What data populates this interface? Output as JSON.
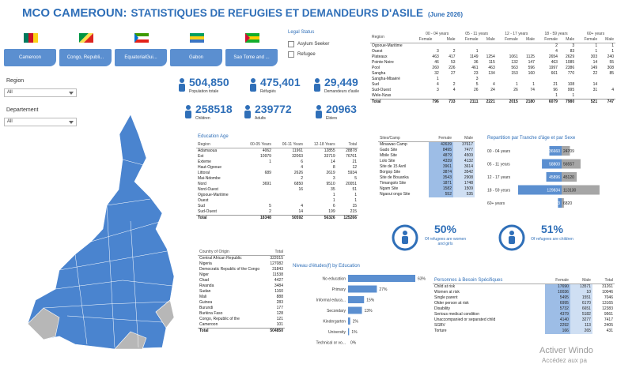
{
  "header": {
    "title": "MCO CAMEROUN:",
    "subtitle": "STATISTIQUES DE REFUGIES ET DEMANDEURS D'ASILE",
    "date": "(June 2026)"
  },
  "countries": [
    "Cameroon",
    "Congo, Republi...",
    "EquatorialGui...",
    "Gabon",
    "Sao Tome and ..."
  ],
  "legal_status": {
    "title": "Legal Status",
    "options": [
      "Asylum Seeker",
      "Refugee"
    ]
  },
  "filters": [
    {
      "label": "Region",
      "value": "All"
    },
    {
      "label": "Departement",
      "value": "All"
    }
  ],
  "kpis": [
    {
      "value": "504,850",
      "label": "Population totale"
    },
    {
      "value": "475,401",
      "label": "Réfugiés"
    },
    {
      "value": "29,449",
      "label": "Demandeurs d'asile"
    },
    {
      "value": "258518",
      "label": "Children"
    },
    {
      "value": "239772",
      "label": "Adults"
    },
    {
      "value": "20963",
      "label": "Elders"
    }
  ],
  "age_sex_table": {
    "region_header": "Region",
    "groups": [
      "00 - 04 years",
      "05 - 11 years",
      "12 - 17 years",
      "18 - 59 years",
      "60+ years"
    ],
    "sub_headers": [
      "Female",
      "Male"
    ],
    "rows": [
      [
        "Ogooue-Maritime",
        null,
        null,
        null,
        null,
        null,
        null,
        "2",
        "3",
        "1",
        "1"
      ],
      [
        "Ouest",
        "3",
        "2",
        "1",
        null,
        null,
        null,
        "4",
        "83",
        "1",
        "1"
      ],
      [
        "Plateaux",
        "463",
        "417",
        "1149",
        "1254",
        "1061",
        "1125",
        "2654",
        "2629",
        "303",
        "240"
      ],
      [
        "Pointe-Noire",
        "46",
        "53",
        "36",
        "115",
        "132",
        "147",
        "463",
        "1085",
        "14",
        "55"
      ],
      [
        "Pool",
        "260",
        "226",
        "461",
        "463",
        "563",
        "596",
        "1997",
        "2386",
        "149",
        "308"
      ],
      [
        "Sangha",
        "32",
        "27",
        "23",
        "134",
        "153",
        "160",
        "661",
        "770",
        "22",
        "85"
      ],
      [
        "Sangha-Mbaéré",
        "1",
        null,
        "3",
        null,
        null,
        null,
        null,
        null,
        null,
        null
      ],
      [
        "Sud",
        "4",
        "2",
        "5",
        "4",
        "1",
        "1",
        "21",
        "108",
        "14",
        null
      ],
      [
        "Sud-Ouest",
        "3",
        "4",
        "26",
        "24",
        "26",
        "74",
        "96",
        "995",
        "31",
        "4"
      ],
      [
        "Wele-Nzas",
        null,
        null,
        null,
        null,
        null,
        null,
        "1",
        "1",
        null,
        null
      ],
      [
        "Total",
        "796",
        "733",
        "2111",
        "2221",
        "2015",
        "2180",
        "6079",
        "7980",
        "521",
        "747"
      ]
    ]
  },
  "education_age_table": {
    "title": "Education Age",
    "header": [
      "Region",
      "00-05 Years",
      "06-11 Years",
      "12-18 Years",
      "Total"
    ],
    "rows": [
      [
        "Adamaoua",
        "4062",
        "11961",
        "12855",
        "28878"
      ],
      [
        "Est",
        "10979",
        "32063",
        "33719",
        "76761"
      ],
      [
        "Exteme",
        "1",
        "6",
        "14",
        "21"
      ],
      [
        "Haut-Ogooue",
        null,
        "4",
        "8",
        "12"
      ],
      [
        "Littoral",
        "689",
        "2626",
        "2619",
        "5934"
      ],
      [
        "Mai-Ndombe",
        null,
        "2",
        "3",
        "5"
      ],
      [
        "Nord",
        "3691",
        "6850",
        "9510",
        "20051"
      ],
      [
        "Nord-Ouest",
        null,
        "16",
        "35",
        "51"
      ],
      [
        "Ogooue-Maritime",
        null,
        null,
        "1",
        "1"
      ],
      [
        "Ouest",
        null,
        null,
        "1",
        "1"
      ],
      [
        "Sud",
        "5",
        "4",
        "6",
        "15"
      ],
      [
        "Sud-Ouest",
        "2",
        "14",
        "199",
        "215"
      ],
      [
        "Total",
        "18348",
        "50592",
        "56326",
        "125266"
      ]
    ]
  },
  "sites_table": {
    "header": [
      "Sites/Camp",
      "Female",
      "Male"
    ],
    "rows": [
      [
        "Minawao Camp",
        "42639",
        "37617"
      ],
      [
        "Gado Site",
        "8495",
        "7477"
      ],
      [
        "Mbile Site",
        "4879",
        "4509"
      ],
      [
        "Lolo Site",
        "4339",
        "4132"
      ],
      [
        "Site de 15 Avril",
        "3961",
        "3614"
      ],
      [
        "Borgop Site",
        "3874",
        "3542"
      ],
      [
        "Site de Bouanka",
        "3543",
        "2908"
      ],
      [
        "Timangolo Site",
        "1871",
        "1748"
      ],
      [
        "Ngam Site",
        "1582",
        "1509"
      ],
      [
        "Ngaoui ongo Site",
        "552",
        "535"
      ]
    ]
  },
  "highlights": [
    {
      "value": "50%",
      "text": "Of refugees are women and girls"
    },
    {
      "value": "51%",
      "text": "Of refugees are children"
    }
  ],
  "origin_table": {
    "header": [
      "Country of Origin",
      "Total"
    ],
    "rows": [
      [
        "Central African Republic",
        "322015"
      ],
      [
        "Nigeria",
        "127082"
      ],
      [
        "Democratic Republic of the Congo",
        "31843"
      ],
      [
        "Niger",
        "11538"
      ],
      [
        "Chad",
        "4427"
      ],
      [
        "Rwanda",
        "3484"
      ],
      [
        "Sudan",
        "1160"
      ],
      [
        "Mali",
        "888"
      ],
      [
        "Guinea",
        "283"
      ],
      [
        "Burundi",
        "177"
      ],
      [
        "Burkina Faso",
        "128"
      ],
      [
        "Congo, Republic of the",
        "121"
      ],
      [
        "Cameroon",
        "101"
      ],
      [
        "Total",
        "504850"
      ]
    ]
  },
  "special_needs_table": {
    "header": [
      "Personnes à Besoin Spécifiques",
      "Female",
      "Male",
      "Total"
    ],
    "rows": [
      [
        "Child at risk",
        "17690",
        "13571",
        "31261"
      ],
      [
        "Women at risk",
        "10036",
        "10",
        "10046"
      ],
      [
        "Single parent",
        "5495",
        "1551",
        "7046"
      ],
      [
        "Older person at risk",
        "6995",
        "6170",
        "13165"
      ],
      [
        "Disability",
        "5732",
        "6651",
        "12383"
      ],
      [
        "Serious medical condition",
        "4379",
        "5182",
        "9561"
      ],
      [
        "Unaccompanied or separated child",
        "4140",
        "3277",
        "7417"
      ],
      [
        "SGBV",
        "2292",
        "113",
        "2405"
      ],
      [
        "Torture",
        "166",
        "265",
        "431"
      ]
    ]
  },
  "chart_data": [
    {
      "type": "pyramid",
      "title": "Repartition par Tranche d'âge et par Sexe",
      "categories": [
        "00 - 04 years",
        "05 - 11 years",
        "12 - 17 years",
        "18 - 59 years",
        "60+ years"
      ],
      "series": [
        {
          "color": "#5b8fd0",
          "values": [
            36660,
            58800,
            45896,
            129834,
            10943
          ]
        },
        {
          "color": "#a6a6a6",
          "values": [
            24709,
            56557,
            45120,
            113130,
            6820
          ]
        }
      ]
    },
    {
      "type": "bar",
      "title": "Niveau d'études(f) by Education",
      "categories": [
        "No education",
        "Primary",
        "Informal educa...",
        "Secondary",
        "Kindergarten",
        "University",
        "Technical or vo..."
      ],
      "values": [
        63,
        27,
        15,
        13,
        2,
        1,
        0
      ],
      "value_labels": [
        "63%",
        "27%",
        "15%",
        "13%",
        "2%",
        "1%",
        "0%"
      ],
      "color": "#5b8fd0"
    }
  ],
  "watermark": [
    "Activer Windo",
    "Accédez aux pa"
  ]
}
